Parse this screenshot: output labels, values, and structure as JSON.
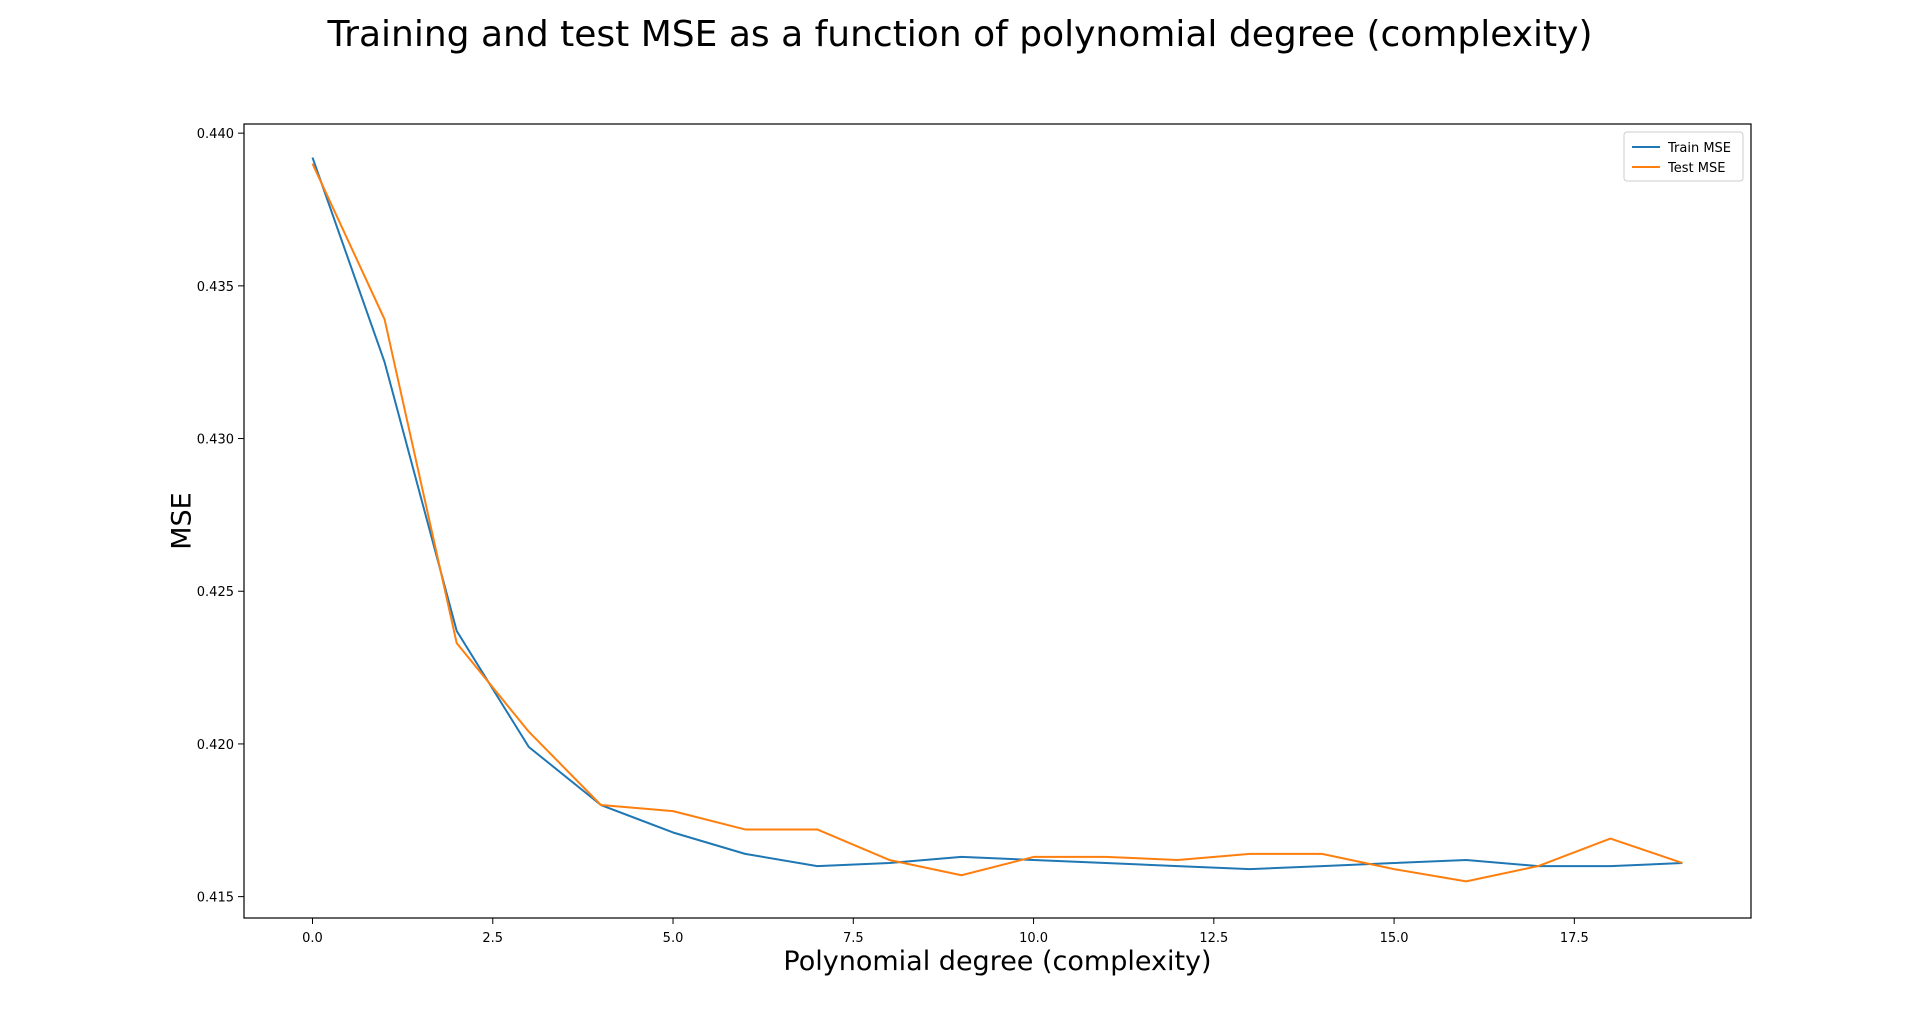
{
  "chart_data": {
    "type": "line",
    "title": "Training and test MSE as a function of polynomial degree (complexity)",
    "xlabel": "Polynomial degree (complexity)",
    "ylabel": "MSE",
    "xlim": [
      -0.95,
      19.95
    ],
    "ylim": [
      0.4143,
      0.4403
    ],
    "x_ticks": [
      0.0,
      2.5,
      5.0,
      7.5,
      10.0,
      12.5,
      15.0,
      17.5
    ],
    "x_tick_labels": [
      "0.0",
      "2.5",
      "5.0",
      "7.5",
      "10.0",
      "12.5",
      "15.0",
      "17.5"
    ],
    "y_ticks": [
      0.415,
      0.42,
      0.425,
      0.43,
      0.435,
      0.44
    ],
    "y_tick_labels": [
      "0.415",
      "0.420",
      "0.425",
      "0.430",
      "0.435",
      "0.440"
    ],
    "grid": false,
    "legend_position": "top-right",
    "x": [
      0,
      1,
      2,
      3,
      4,
      5,
      6,
      7,
      8,
      9,
      10,
      11,
      12,
      13,
      14,
      15,
      16,
      17,
      18,
      19
    ],
    "series": [
      {
        "name": "Train MSE",
        "color": "#1f77b4",
        "values": [
          0.4392,
          0.4325,
          0.4237,
          0.4199,
          0.418,
          0.4171,
          0.4164,
          0.416,
          0.4161,
          0.4163,
          0.4162,
          0.4161,
          0.416,
          0.4159,
          0.416,
          0.4161,
          0.4162,
          0.416,
          0.416,
          0.4161
        ]
      },
      {
        "name": "Test MSE",
        "color": "#ff7f0e",
        "values": [
          0.439,
          0.4339,
          0.4233,
          0.4204,
          0.418,
          0.4178,
          0.4172,
          0.4172,
          0.4162,
          0.4157,
          0.4163,
          0.4163,
          0.4162,
          0.4164,
          0.4164,
          0.4159,
          0.4155,
          0.416,
          0.4169,
          0.4161
        ]
      }
    ]
  }
}
